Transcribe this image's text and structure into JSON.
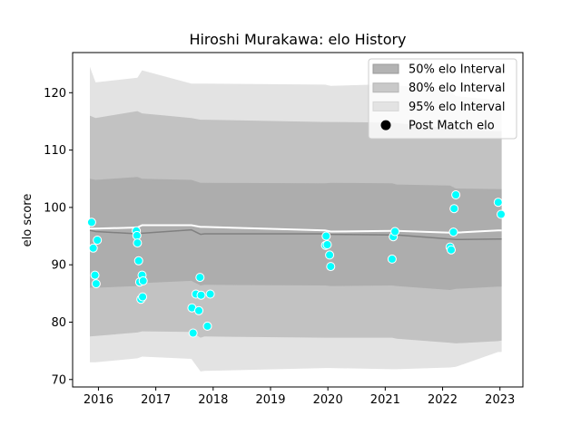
{
  "chart_data": {
    "type": "scatter",
    "title": "Hiroshi Murakawa: elo History",
    "xlabel": "",
    "ylabel": "elo score",
    "xlim": [
      2015.55,
      2023.4
    ],
    "ylim": [
      68.7,
      127
    ],
    "x_ticks": [
      2016,
      2017,
      2018,
      2019,
      2020,
      2021,
      2022,
      2023
    ],
    "x_tick_labels": [
      "2016",
      "2017",
      "2018",
      "2019",
      "2020",
      "2021",
      "2022",
      "2023"
    ],
    "y_ticks": [
      70,
      80,
      90,
      100,
      110,
      120
    ],
    "y_tick_labels": [
      "70",
      "80",
      "90",
      "100",
      "110",
      "120"
    ],
    "grid": false,
    "legend_position": "top-right",
    "legend": [
      "50% elo Interval",
      "80% elo Interval",
      "95% elo Interval",
      "Post Match elo"
    ],
    "colors": {
      "band50": "#888888",
      "band80": "#b0b0b0",
      "band95": "#e3e3e3",
      "mean_line": "#808080",
      "upper_line": "#ffffff",
      "points": "#00ffff"
    },
    "x": [
      2015.85,
      2015.95,
      2016.68,
      2016.76,
      2017.62,
      2017.78,
      2017.85,
      2019.95,
      2020.05,
      2021.12,
      2021.2,
      2022.13,
      2022.23,
      2022.97,
      2023.03
    ],
    "mean": [
      96.0,
      95.8,
      95.4,
      95.5,
      96.1,
      95.3,
      95.4,
      95.4,
      95.3,
      95.2,
      95.2,
      94.5,
      94.4,
      94.5,
      94.5
    ],
    "upper_line": [
      96.3,
      96.3,
      96.5,
      96.9,
      96.9,
      96.6,
      96.6,
      96.0,
      95.8,
      95.9,
      95.9,
      95.6,
      95.6,
      96.0,
      96.0
    ],
    "band50_low": [
      86.0,
      86.0,
      86.3,
      86.8,
      87.2,
      86.4,
      86.5,
      86.4,
      86.3,
      86.4,
      86.3,
      85.6,
      85.8,
      86.2,
      86.2
    ],
    "band50_high": [
      105.0,
      104.8,
      105.3,
      105.0,
      104.8,
      104.3,
      104.3,
      104.2,
      104.3,
      104.2,
      104.0,
      103.8,
      103.3,
      103.2,
      103.2
    ],
    "band80_low": [
      77.5,
      77.6,
      78.2,
      78.4,
      78.3,
      77.3,
      77.5,
      77.3,
      77.3,
      77.3,
      77.1,
      76.4,
      76.3,
      76.7,
      76.8
    ],
    "band80_high": [
      116.0,
      115.6,
      116.8,
      116.4,
      115.6,
      115.3,
      115.3,
      114.9,
      114.9,
      114.8,
      114.7,
      113.8,
      113.5,
      113.3,
      113.3
    ],
    "band95_low": [
      73.0,
      73.0,
      73.7,
      74.0,
      73.6,
      71.4,
      71.5,
      72.0,
      72.0,
      71.8,
      71.8,
      72.1,
      72.2,
      74.8,
      74.8
    ],
    "band95_high": [
      124.5,
      121.8,
      122.6,
      123.9,
      121.6,
      121.6,
      121.6,
      121.4,
      121.2,
      121.5,
      121.3,
      120.3,
      119.4,
      118.7,
      118.7
    ],
    "post_match_elo": {
      "x": [
        2015.88,
        2015.91,
        2015.94,
        2015.96,
        2015.98,
        2016.66,
        2016.67,
        2016.68,
        2016.7,
        2016.72,
        2016.74,
        2016.76,
        2016.77,
        2016.78,
        2017.63,
        2017.65,
        2017.7,
        2017.75,
        2017.77,
        2017.79,
        2017.9,
        2017.95,
        2019.96,
        2019.97,
        2019.99,
        2020.03,
        2020.05,
        2021.12,
        2021.14,
        2021.17,
        2022.13,
        2022.15,
        2022.19,
        2022.2,
        2022.23,
        2022.97,
        2023.02
      ],
      "y": [
        97.4,
        92.9,
        88.2,
        86.7,
        94.3,
        95.9,
        95.1,
        93.8,
        90.7,
        87.0,
        84.0,
        88.2,
        84.4,
        87.2,
        82.5,
        78.1,
        84.9,
        82.0,
        87.8,
        84.7,
        79.3,
        84.9,
        93.4,
        95.0,
        93.5,
        91.7,
        89.7,
        91.0,
        94.9,
        95.8,
        93.1,
        92.6,
        95.7,
        99.8,
        102.2,
        100.9,
        98.8
      ]
    }
  }
}
